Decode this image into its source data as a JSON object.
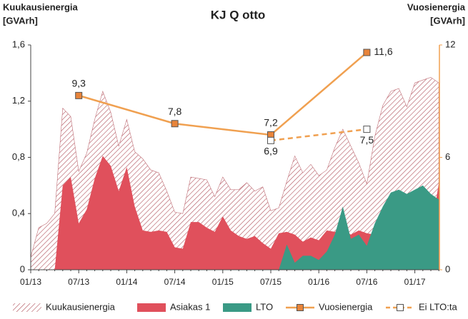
{
  "chart_data": {
    "type": "area_line",
    "title": "KJ Q otto",
    "y_label": [
      "Kuukausienergia",
      "[GVArh]"
    ],
    "y2_label": [
      "Vuosienergia",
      "[GVArh]"
    ],
    "categories": [
      "01/13",
      null,
      null,
      null,
      null,
      null,
      "07/13",
      null,
      null,
      null,
      null,
      null,
      "01/14",
      null,
      null,
      null,
      null,
      null,
      "07/14",
      null,
      null,
      null,
      null,
      null,
      "01/15",
      null,
      null,
      null,
      null,
      null,
      "07/15",
      null,
      null,
      null,
      null,
      null,
      "01/16",
      null,
      null,
      null,
      null,
      null,
      "07/16",
      null,
      null,
      null,
      null,
      null,
      "01/17",
      null,
      null,
      null
    ],
    "ylim": [
      0,
      1.6
    ],
    "yticks": [
      0,
      {
        "value": 0.4,
        "label": "0,4"
      },
      {
        "value": 0.8,
        "label": "0,8"
      },
      {
        "value": 1.2,
        "label": "1,2"
      },
      {
        "value": 1.6,
        "label": "1,6"
      }
    ],
    "y2lim": [
      0,
      12
    ],
    "y2ticks": [
      0,
      6,
      12
    ],
    "series": [
      {
        "name": "Kuukausienergia",
        "kind": "area",
        "pattern": "hatch",
        "color": "#b0505a",
        "values": [
          0.09,
          0.3,
          0.33,
          0.4,
          1.15,
          1.09,
          0.7,
          0.83,
          1.07,
          1.27,
          1.12,
          0.88,
          1.07,
          0.84,
          0.79,
          0.71,
          0.69,
          0.56,
          0.41,
          0.4,
          0.66,
          0.65,
          0.64,
          0.52,
          0.66,
          0.57,
          0.57,
          0.62,
          0.56,
          0.59,
          0.42,
          0.44,
          0.63,
          0.81,
          0.69,
          0.75,
          0.67,
          0.71,
          0.87,
          1.0,
          0.88,
          0.76,
          0.61,
          0.95,
          1.17,
          1.27,
          1.29,
          1.16,
          1.33,
          1.35,
          1.37,
          1.33
        ]
      },
      {
        "name": "Asiakas 1",
        "kind": "area",
        "color": "#e0505c",
        "values": [
          null,
          null,
          null,
          0,
          0.6,
          0.66,
          0.33,
          0.43,
          0.65,
          0.81,
          0.74,
          0.56,
          0.73,
          0.45,
          0.28,
          0.27,
          0.28,
          0.27,
          0.16,
          0.15,
          0.34,
          0.34,
          0.3,
          0.27,
          0.38,
          0.28,
          0.24,
          0.22,
          0.24,
          0.19,
          0.15,
          0.26,
          0.27,
          0.25,
          0.2,
          0.23,
          0.21,
          0.28,
          0.27,
          0.29,
          0.25,
          0.28,
          0.26,
          0.25,
          0.25,
          0.25,
          0.25,
          0.25,
          0.25,
          0.25,
          0.25,
          0.62
        ]
      },
      {
        "name": "LTO",
        "kind": "area",
        "color": "#3a9a85",
        "values": [
          null,
          null,
          null,
          null,
          null,
          null,
          null,
          null,
          null,
          null,
          null,
          null,
          null,
          null,
          null,
          null,
          null,
          null,
          null,
          null,
          null,
          null,
          null,
          null,
          null,
          null,
          null,
          null,
          null,
          null,
          null,
          0,
          0.18,
          0.05,
          0.1,
          0.1,
          0.07,
          0.13,
          0.25,
          0.45,
          0.22,
          0.25,
          0.17,
          0.33,
          0.45,
          0.55,
          0.57,
          0.54,
          0.57,
          0.6,
          0.54,
          0.5
        ]
      },
      {
        "name": "Vuosienergia",
        "kind": "line",
        "axis": "y2",
        "color": "#f0a050",
        "marker_color": "#e8843a",
        "x": [
          "07/13",
          "07/14",
          "07/15",
          "07/16"
        ],
        "values": [
          9.3,
          7.8,
          7.2,
          11.6
        ],
        "value_labels": [
          "9,3",
          "7,8",
          "7,2",
          "11,6"
        ]
      },
      {
        "name": "Ei LTO:ta",
        "kind": "line",
        "axis": "y2",
        "dashed": true,
        "color": "#f0a050",
        "marker_color": "#ffffff",
        "x": [
          "07/15",
          "07/16"
        ],
        "values": [
          6.9,
          7.5
        ],
        "value_labels": [
          "6,9",
          "7,5"
        ]
      }
    ]
  }
}
